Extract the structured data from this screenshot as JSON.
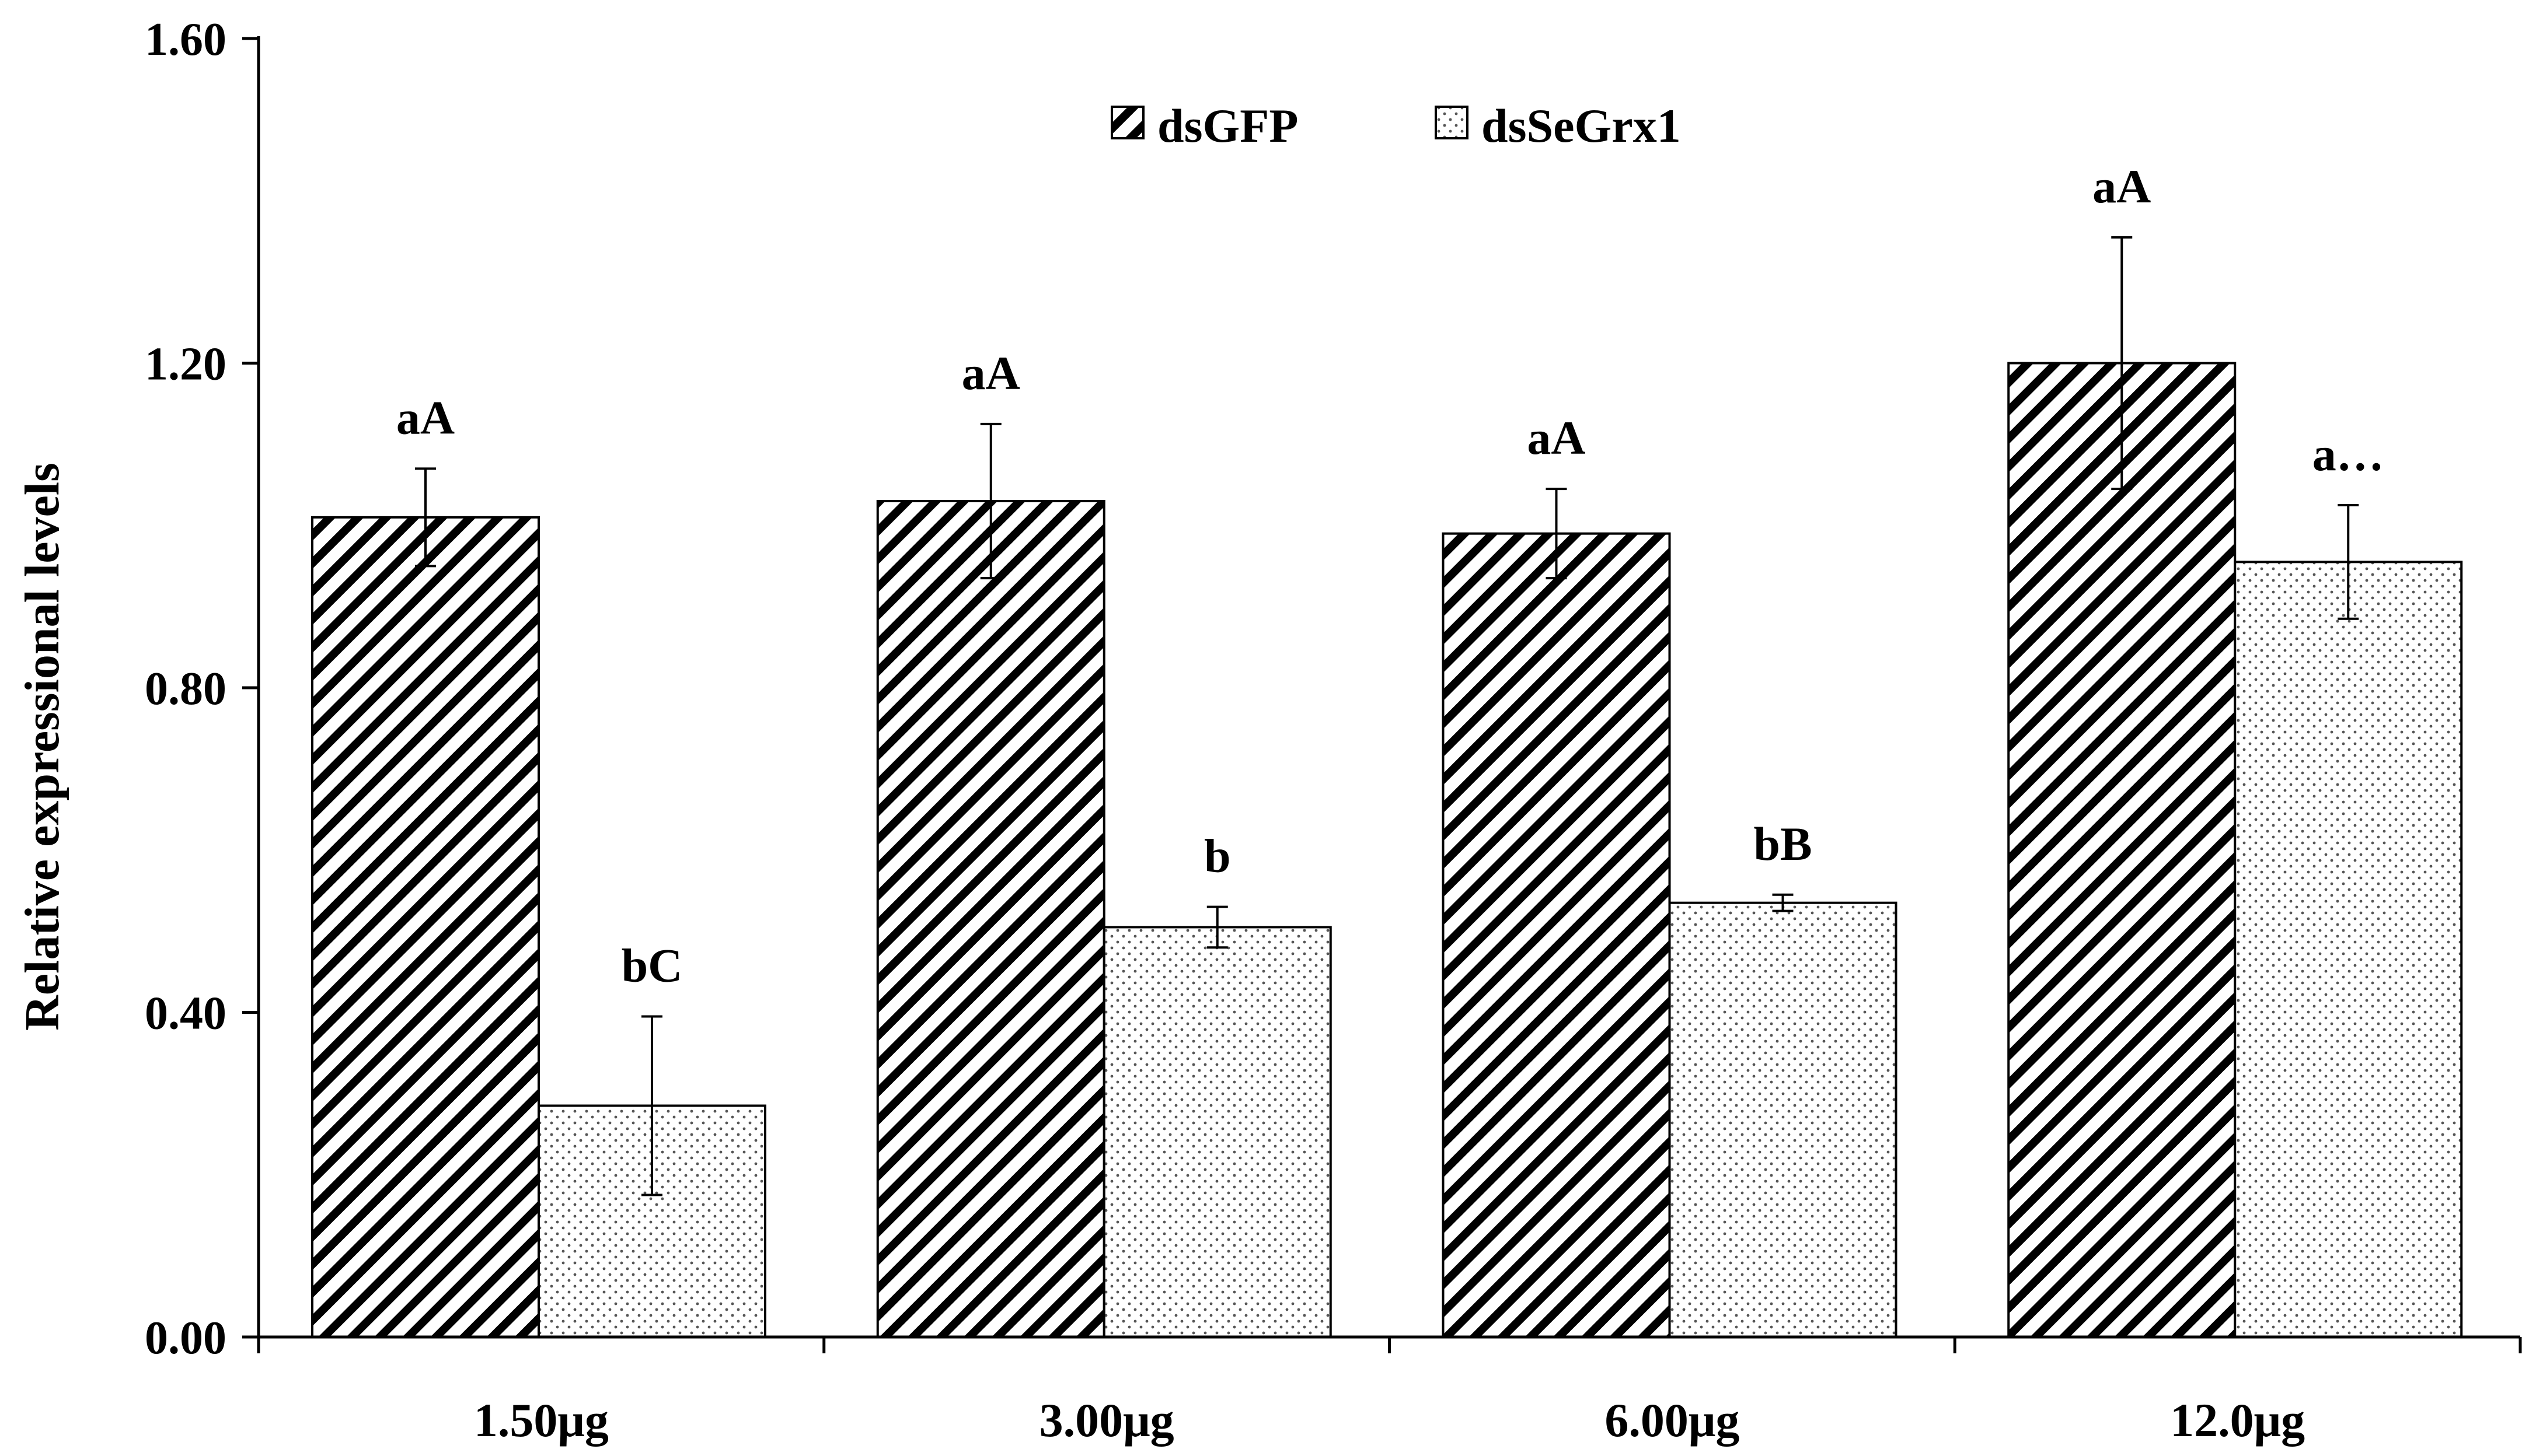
{
  "chart_data": {
    "type": "bar",
    "title": "",
    "xlabel": "",
    "ylabel": "Relative expressional levels",
    "ylim": [
      0,
      1.6
    ],
    "yticks": [
      0.0,
      0.4,
      0.8,
      1.2,
      1.6
    ],
    "ytick_labels": [
      "0.00",
      "0.40",
      "0.80",
      "1.20",
      "1.60"
    ],
    "categories": [
      "1.50μg",
      "3.00μg",
      "6.00μg",
      "12.0μg"
    ],
    "legend_position": "top-center",
    "series": [
      {
        "name": "dsGFP",
        "pattern": "diagonal-hatch",
        "values": [
          1.01,
          1.03,
          0.99,
          1.2
        ],
        "errors": [
          0.06,
          0.095,
          0.055,
          0.155
        ],
        "labels": [
          "aA",
          "aA",
          "aA",
          "aA"
        ]
      },
      {
        "name": "dsSeGrx1",
        "pattern": "dots",
        "values": [
          0.285,
          0.505,
          0.535,
          0.955
        ],
        "errors": [
          0.11,
          0.025,
          0.01,
          0.07
        ],
        "labels": [
          "bC",
          "b",
          "bB",
          "a…"
        ]
      }
    ]
  },
  "colors": {
    "axis": "#000000",
    "bar_fill": "#ffffff",
    "hatch": "#000000",
    "dots": "#555555"
  }
}
